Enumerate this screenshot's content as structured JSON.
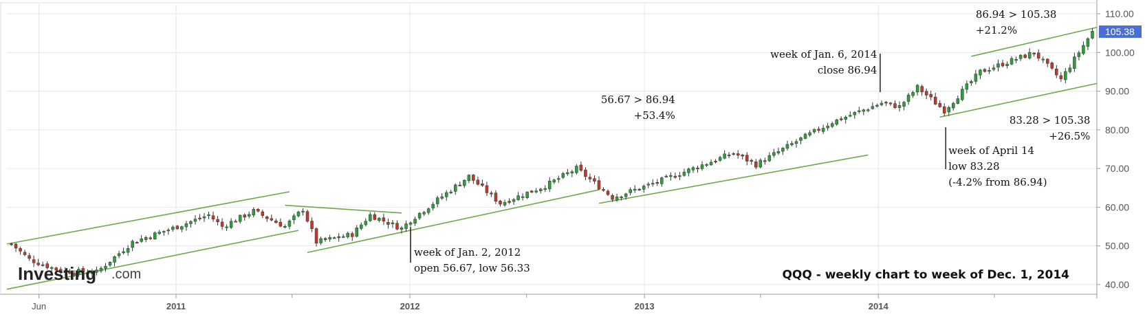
{
  "chart_data": {
    "type": "candlestick",
    "title": "QQQ - weekly chart to week of Dec. 1, 2014",
    "logo": {
      "main": "Investing",
      "sub": ".com"
    },
    "y_axis": {
      "ticks": [
        "110.00",
        "100.00",
        "90.00",
        "80.00",
        "70.00",
        "60.00",
        "50.00",
        "40.00"
      ],
      "tick_values": [
        110,
        100,
        90,
        80,
        70,
        60,
        50,
        40
      ],
      "range": [
        37.5,
        112.5
      ],
      "last_price_label": "105.38",
      "last_price": 105.38,
      "last_price_color": "#4a6fd4"
    },
    "x_axis": {
      "ticks": [
        {
          "label": "Jun",
          "date": "2010-06-01",
          "bold": false
        },
        {
          "label": "2011",
          "date": "2011-01-01",
          "bold": true
        },
        {
          "label": "2012",
          "date": "2012-01-01",
          "bold": true
        },
        {
          "label": "2013",
          "date": "2013-01-01",
          "bold": true
        },
        {
          "label": "2014",
          "date": "2014-01-01",
          "bold": true
        }
      ],
      "minor_ticks": [
        "2011-07-01",
        "2012-07-01",
        "2013-07-01",
        "2014-07-01"
      ],
      "range": [
        "2010-04-12",
        "2014-12-08"
      ]
    },
    "colors": {
      "up": "#2e9e3c",
      "down": "#c0392b",
      "trendline": "#6aaa48",
      "grid": "#e6e6e6"
    },
    "price_path": [
      {
        "date": "2010-04-19",
        "price": 50.5
      },
      {
        "date": "2010-05-17",
        "price": 46.5
      },
      {
        "date": "2010-07-05",
        "price": 43.5
      },
      {
        "date": "2010-08-30",
        "price": 43.2
      },
      {
        "date": "2010-10-25",
        "price": 51.0
      },
      {
        "date": "2011-01-03",
        "price": 55.0
      },
      {
        "date": "2011-02-21",
        "price": 58.0
      },
      {
        "date": "2011-03-14",
        "price": 55.0
      },
      {
        "date": "2011-05-02",
        "price": 59.0
      },
      {
        "date": "2011-06-20",
        "price": 55.0
      },
      {
        "date": "2011-07-18",
        "price": 59.5
      },
      {
        "date": "2011-08-08",
        "price": 51.0
      },
      {
        "date": "2011-10-03",
        "price": 53.0
      },
      {
        "date": "2011-10-31",
        "price": 58.0
      },
      {
        "date": "2011-12-19",
        "price": 54.5
      },
      {
        "date": "2012-01-02",
        "price": 56.67
      },
      {
        "date": "2012-04-02",
        "price": 68.0
      },
      {
        "date": "2012-05-21",
        "price": 61.0
      },
      {
        "date": "2012-07-30",
        "price": 65.5
      },
      {
        "date": "2012-09-17",
        "price": 70.0
      },
      {
        "date": "2012-11-12",
        "price": 62.5
      },
      {
        "date": "2013-01-21",
        "price": 66.5
      },
      {
        "date": "2013-05-20",
        "price": 74.0
      },
      {
        "date": "2013-06-24",
        "price": 71.0
      },
      {
        "date": "2013-08-26",
        "price": 77.0
      },
      {
        "date": "2013-10-21",
        "price": 82.0
      },
      {
        "date": "2014-01-06",
        "price": 86.94
      },
      {
        "date": "2014-02-03",
        "price": 86.0
      },
      {
        "date": "2014-03-03",
        "price": 91.0
      },
      {
        "date": "2014-04-14",
        "price": 85.0
      },
      {
        "date": "2014-06-09",
        "price": 95.0
      },
      {
        "date": "2014-09-01",
        "price": 100.0
      },
      {
        "date": "2014-10-13",
        "price": 93.0
      },
      {
        "date": "2014-12-01",
        "price": 105.38
      }
    ],
    "trendlines": [
      {
        "from": [
          "2010-04-12",
          50.5
        ],
        "to": [
          "2011-06-27",
          64.0
        ]
      },
      {
        "from": [
          "2010-04-12",
          38.8
        ],
        "to": [
          "2011-07-11",
          54.0
        ]
      },
      {
        "from": [
          "2011-06-20",
          60.5
        ],
        "to": [
          "2011-12-19",
          58.5
        ]
      },
      {
        "from": [
          "2011-07-25",
          48.3
        ],
        "to": [
          "2012-10-22",
          64.5
        ]
      },
      {
        "from": [
          "2012-10-22",
          61.0
        ],
        "to": [
          "2013-12-16",
          73.5
        ]
      },
      {
        "from": [
          "2014-04-07",
          83.3
        ],
        "to": [
          "2014-12-08",
          92.0
        ]
      },
      {
        "from": [
          "2014-05-26",
          99.0
        ],
        "to": [
          "2014-12-08",
          106.5
        ]
      }
    ],
    "annotations": [
      {
        "lines": [
          "week of Jan. 2, 2012",
          "open 56.67, low 56.33"
        ],
        "date": "2012-01-02",
        "align": "left"
      },
      {
        "lines": [
          "56.67 > 86.94",
          "+53.4%"
        ],
        "date": "2013-02-18",
        "align": "right"
      },
      {
        "lines": [
          "week of Jan. 6, 2014",
          "close 86.94"
        ],
        "date": "2013-12-30",
        "align": "right"
      },
      {
        "lines": [
          "week of April 14",
          "low 83.28",
          "(-4.2% from 86.94)"
        ],
        "date": "2014-04-14",
        "align": "left"
      },
      {
        "lines": [
          "86.94 > 105.38",
          "+21.2%"
        ],
        "date": "2014-06-02",
        "align": "left"
      },
      {
        "lines": [
          "83.28 > 105.38",
          "+26.5%"
        ],
        "date": "2014-11-17",
        "align": "right"
      }
    ]
  }
}
